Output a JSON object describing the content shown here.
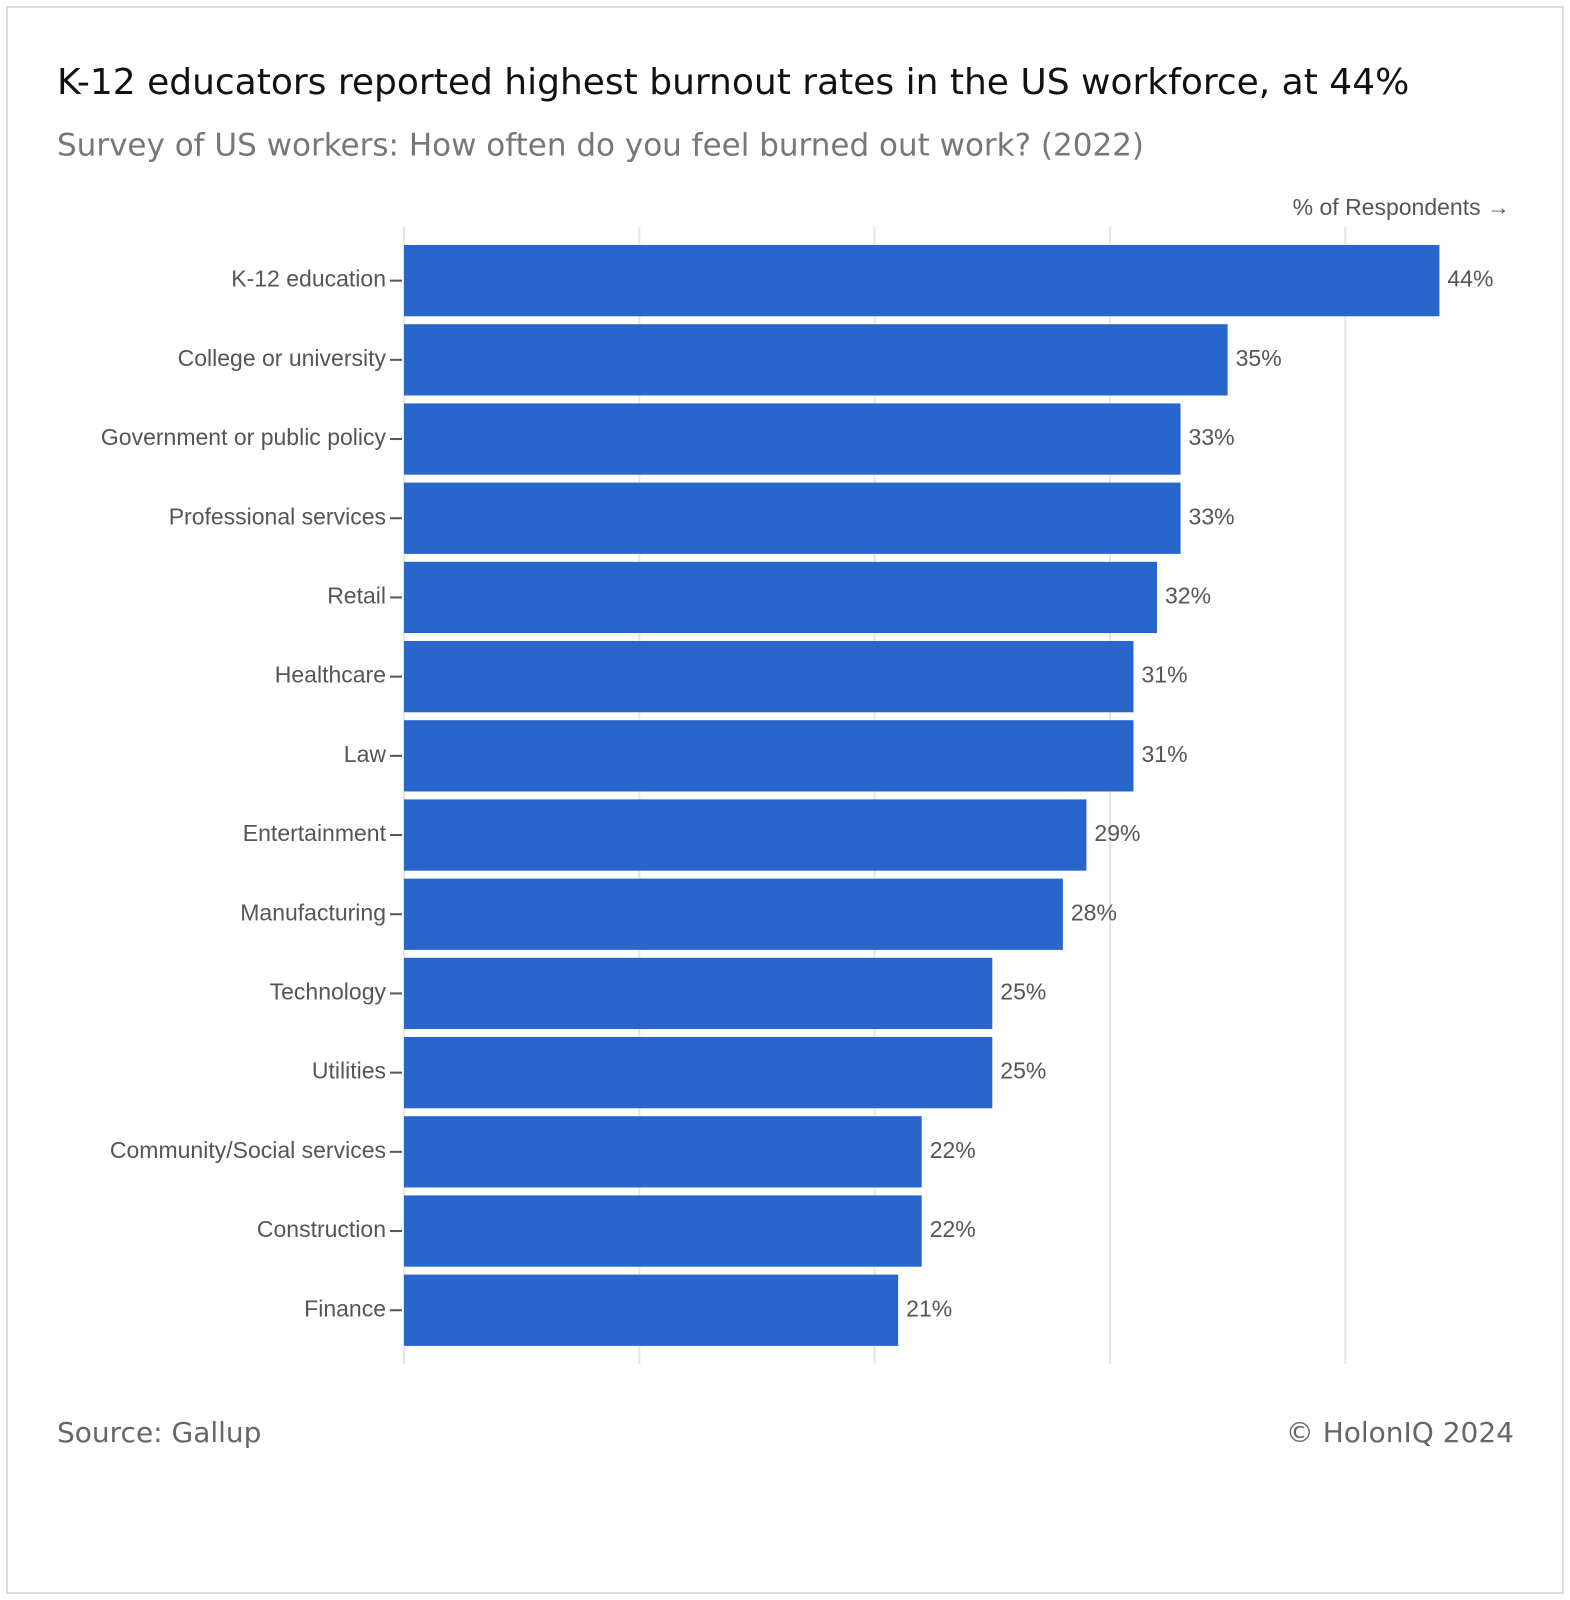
{
  "chart_data": {
    "type": "bar",
    "orientation": "horizontal",
    "title": "K-12 educators reported highest burnout rates in the US workforce, at 44%",
    "subtitle": "Survey of US workers: How often do you feel burned out work? (2022)",
    "x_axis_label": "% of Respondents →",
    "categories": [
      "K-12 education",
      "College or university",
      "Government or public policy",
      "Professional services",
      "Retail",
      "Healthcare",
      "Law",
      "Entertainment",
      "Manufacturing",
      "Technology",
      "Utilities",
      "Community/Social services",
      "Construction",
      "Finance"
    ],
    "values": [
      44,
      35,
      33,
      33,
      32,
      31,
      31,
      29,
      28,
      25,
      25,
      22,
      22,
      21
    ],
    "value_labels": [
      "44%",
      "35%",
      "33%",
      "33%",
      "32%",
      "31%",
      "31%",
      "29%",
      "28%",
      "25%",
      "25%",
      "22%",
      "22%",
      "21%"
    ],
    "color": "#2966cc",
    "xlim": [
      0,
      47
    ],
    "xgrid": [
      0,
      10,
      20,
      30,
      40
    ],
    "grid": true,
    "source": "Source: Gallup",
    "credit": "© HolonIQ 2024"
  }
}
